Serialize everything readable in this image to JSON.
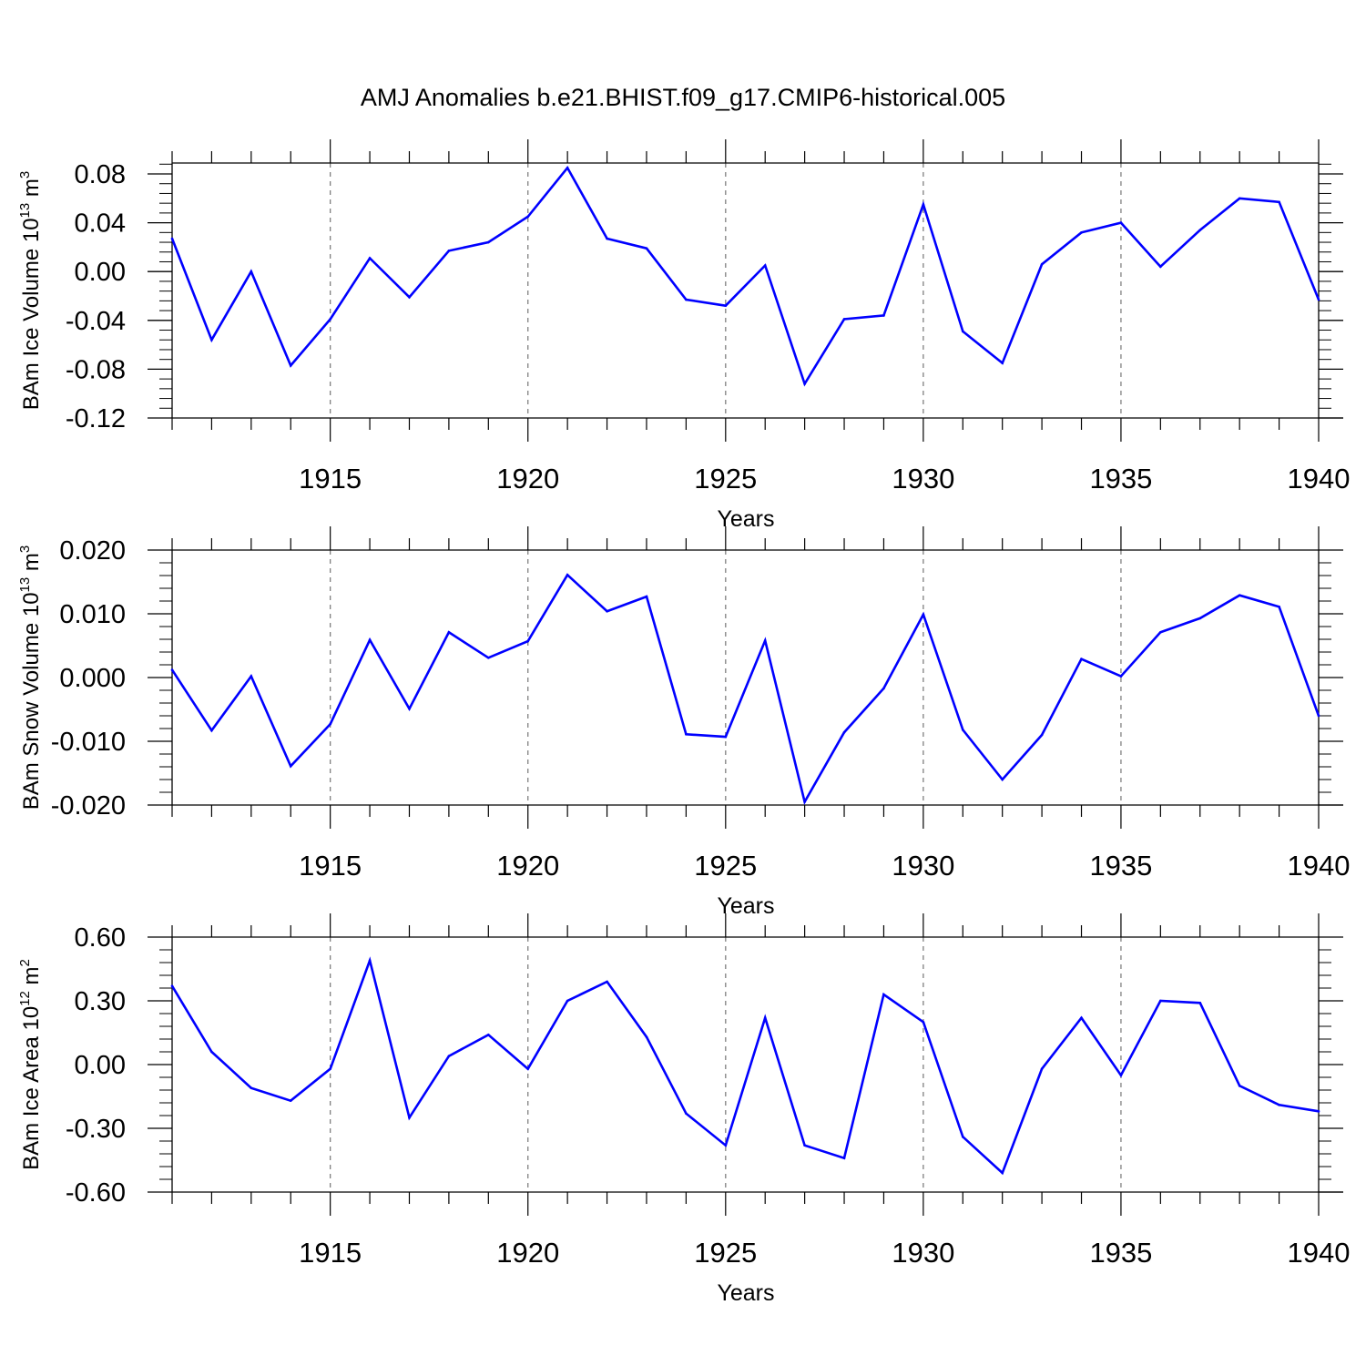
{
  "title": "AMJ Anomalies b.e21.BHIST.f09_g17.CMIP6-historical.005",
  "colors": {
    "line": "#0000ff",
    "axis": "#000000",
    "grid": "#808080"
  },
  "chart_data": [
    {
      "type": "line",
      "ylabel": {
        "text": "BAm Ice Volume 10",
        "sup": "13",
        "unit": " m",
        "unit_sup": "3"
      },
      "xlabel": "Years",
      "xlim": [
        1911,
        1940
      ],
      "ylim": [
        -0.12,
        0.1
      ],
      "yticks": [
        -0.12,
        -0.08,
        -0.04,
        0.0,
        0.04,
        0.08
      ],
      "ytick_labels": [
        "-0.12",
        "-0.08",
        "-0.04",
        "0.00",
        "0.04",
        "0.08"
      ],
      "xticks": [
        1915,
        1920,
        1925,
        1930,
        1935,
        1940
      ],
      "xtick_labels": [
        "1915",
        "1920",
        "1925",
        "1930",
        "1935",
        "1940"
      ],
      "grid": "vertical dashed at major x ticks",
      "x": [
        1911,
        1912,
        1913,
        1914,
        1915,
        1916,
        1917,
        1918,
        1919,
        1920,
        1921,
        1922,
        1923,
        1924,
        1925,
        1926,
        1927,
        1928,
        1929,
        1930,
        1931,
        1932,
        1933,
        1934,
        1935,
        1936,
        1937,
        1938,
        1939,
        1940
      ],
      "values": [
        0.027,
        -0.056,
        0.0,
        -0.077,
        -0.039,
        0.011,
        -0.021,
        0.017,
        0.024,
        0.045,
        0.085,
        0.027,
        0.019,
        -0.023,
        -0.028,
        0.005,
        -0.092,
        -0.039,
        -0.036,
        0.055,
        -0.049,
        -0.075,
        0.006,
        0.032,
        0.04,
        0.004,
        0.034,
        0.06,
        0.057,
        -0.023
      ]
    },
    {
      "type": "line",
      "ylabel": {
        "text": "BAm Snow Volume 10",
        "sup": "13",
        "unit": " m",
        "unit_sup": "3"
      },
      "xlabel": "Years",
      "xlim": [
        1911,
        1940
      ],
      "ylim": [
        -0.02,
        0.02
      ],
      "yticks": [
        -0.02,
        -0.01,
        0.0,
        0.01,
        0.02
      ],
      "ytick_labels": [
        "-0.020",
        "-0.010",
        "0.000",
        "0.010",
        "0.020"
      ],
      "xticks": [
        1915,
        1920,
        1925,
        1930,
        1935,
        1940
      ],
      "xtick_labels": [
        "1915",
        "1920",
        "1925",
        "1930",
        "1935",
        "1940"
      ],
      "grid": "vertical dashed at major x ticks",
      "x": [
        1911,
        1912,
        1913,
        1914,
        1915,
        1916,
        1917,
        1918,
        1919,
        1920,
        1921,
        1922,
        1923,
        1924,
        1925,
        1926,
        1927,
        1928,
        1929,
        1930,
        1931,
        1932,
        1933,
        1934,
        1935,
        1936,
        1937,
        1938,
        1939,
        1940
      ],
      "values": [
        0.0012,
        -0.0083,
        0.0002,
        -0.0139,
        -0.0073,
        0.0059,
        -0.0049,
        0.0071,
        0.0031,
        0.0057,
        0.0161,
        0.0104,
        0.0127,
        -0.0089,
        -0.0093,
        0.0058,
        -0.0195,
        -0.0086,
        -0.0017,
        0.0099,
        -0.0082,
        -0.016,
        -0.009,
        0.0029,
        0.0002,
        0.0071,
        0.0093,
        0.0129,
        0.0111,
        -0.006
      ]
    },
    {
      "type": "line",
      "ylabel": {
        "text": "BAm Ice Area 10",
        "sup": "12",
        "unit": " m",
        "unit_sup": "2"
      },
      "xlabel": "Years",
      "xlim": [
        1911,
        1940
      ],
      "ylim": [
        -0.6,
        0.6
      ],
      "yticks": [
        -0.6,
        -0.3,
        0.0,
        0.3,
        0.6
      ],
      "ytick_labels": [
        "-0.60",
        "-0.30",
        "0.00",
        "0.30",
        "0.60"
      ],
      "xticks": [
        1915,
        1920,
        1925,
        1930,
        1935,
        1940
      ],
      "xtick_labels": [
        "1915",
        "1920",
        "1925",
        "1930",
        "1935",
        "1940"
      ],
      "grid": "vertical dashed at major x ticks",
      "x": [
        1911,
        1912,
        1913,
        1914,
        1915,
        1916,
        1917,
        1918,
        1919,
        1920,
        1921,
        1922,
        1923,
        1924,
        1925,
        1926,
        1927,
        1928,
        1929,
        1930,
        1931,
        1932,
        1933,
        1934,
        1935,
        1936,
        1937,
        1938,
        1939,
        1940
      ],
      "values": [
        0.37,
        0.06,
        -0.11,
        -0.17,
        -0.02,
        0.49,
        -0.25,
        0.04,
        0.14,
        -0.02,
        0.3,
        0.39,
        0.13,
        -0.23,
        -0.38,
        0.22,
        -0.38,
        -0.44,
        0.33,
        0.2,
        -0.34,
        -0.51,
        -0.02,
        0.22,
        -0.05,
        0.3,
        0.29,
        -0.1,
        -0.19,
        -0.22
      ]
    }
  ]
}
